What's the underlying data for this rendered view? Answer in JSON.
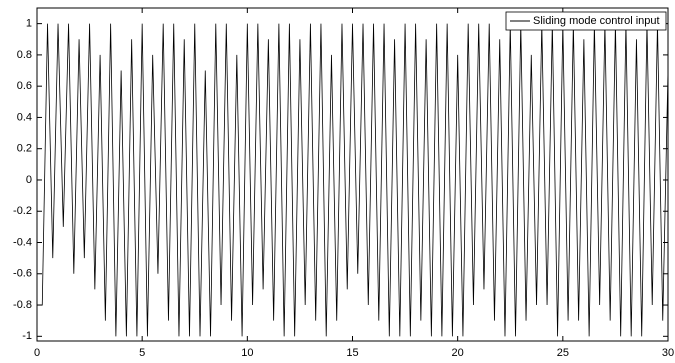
{
  "chart_data": {
    "type": "line",
    "x": [
      0,
      0.25,
      0.5,
      0.75,
      1,
      1.25,
      1.5,
      1.75,
      2,
      2.25,
      2.5,
      2.75,
      3,
      3.25,
      3.5,
      3.75,
      4,
      4.25,
      4.5,
      4.75,
      5,
      5.25,
      5.5,
      5.75,
      6,
      6.25,
      6.5,
      6.75,
      7,
      7.25,
      7.5,
      7.75,
      8,
      8.25,
      8.5,
      8.75,
      9,
      9.25,
      9.5,
      9.75,
      10,
      10.25,
      10.5,
      10.75,
      11,
      11.25,
      11.5,
      11.75,
      12,
      12.25,
      12.5,
      12.75,
      13,
      13.25,
      13.5,
      13.75,
      14,
      14.25,
      14.5,
      14.75,
      15,
      15.25,
      15.5,
      15.75,
      16,
      16.25,
      16.5,
      16.75,
      17,
      17.25,
      17.5,
      17.75,
      18,
      18.25,
      18.5,
      18.75,
      19,
      19.25,
      19.5,
      19.75,
      20,
      20.25,
      20.5,
      20.75,
      21,
      21.25,
      21.5,
      21.75,
      22,
      22.25,
      22.5,
      22.75,
      23,
      23.25,
      23.5,
      23.75,
      24,
      24.25,
      24.5,
      24.75,
      25,
      25.25,
      25.5,
      25.75,
      26,
      26.25,
      26.5,
      26.75,
      27,
      27.25,
      27.5,
      27.75,
      28,
      28.25,
      28.5,
      28.75,
      29,
      29.25,
      29.5,
      29.75,
      30
    ],
    "series": [
      {
        "name": "Sliding mode control input",
        "color": "#000000",
        "values": [
          -0.8,
          -0.8,
          1,
          -0.5,
          1,
          -0.3,
          1,
          -0.6,
          0.9,
          -0.5,
          1,
          -0.7,
          0.8,
          -0.9,
          1,
          -1,
          0.7,
          -1,
          0.9,
          -1,
          1,
          -1,
          0.8,
          -0.6,
          1,
          -0.9,
          1,
          -1,
          0.9,
          -1,
          1,
          -1,
          0.7,
          -1,
          1,
          -0.8,
          1,
          -0.9,
          0.8,
          -1,
          1,
          -0.8,
          1,
          -0.7,
          0.9,
          -0.9,
          1,
          -1,
          1,
          -1,
          0.9,
          -0.8,
          1,
          -0.9,
          1,
          -1,
          0.8,
          -0.9,
          1,
          -0.7,
          1,
          -0.6,
          1,
          -0.8,
          1,
          -0.9,
          1,
          -1,
          0.9,
          -1,
          1,
          -1,
          1,
          -0.9,
          0.9,
          -1,
          1,
          -1,
          1,
          -1,
          0.8,
          -1,
          1,
          -0.8,
          1,
          -0.7,
          1,
          -0.9,
          0.9,
          -1,
          1,
          -1,
          1,
          -0.9,
          0.8,
          -0.8,
          1,
          -0.8,
          1,
          -1,
          1,
          -0.9,
          1,
          -0.9,
          0.9,
          -1,
          1,
          -0.8,
          1,
          -0.9,
          1,
          -1,
          1,
          -1,
          0.9,
          -1,
          1,
          -0.8,
          1,
          -0.9,
          0.7
        ]
      }
    ],
    "xlim": [
      0,
      30
    ],
    "ylim": [
      -1.03,
      1.1
    ],
    "xticks": [
      0,
      5,
      10,
      15,
      20,
      25,
      30
    ],
    "yticks": [
      -1,
      -0.8,
      -0.6,
      -0.4,
      -0.2,
      0,
      0.2,
      0.4,
      0.6,
      0.8,
      1
    ],
    "grid": false,
    "legend": "upper right"
  }
}
